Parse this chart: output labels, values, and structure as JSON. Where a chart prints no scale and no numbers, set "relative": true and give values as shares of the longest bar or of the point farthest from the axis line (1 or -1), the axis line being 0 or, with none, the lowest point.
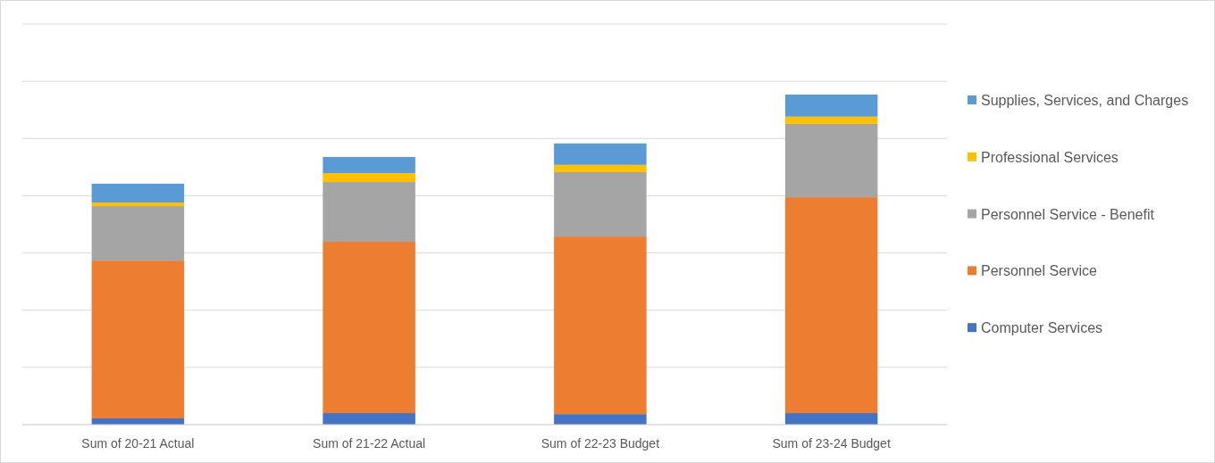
{
  "chart_data": {
    "type": "bar",
    "stacked": true,
    "relative": true,
    "grid": "y",
    "legend": "right",
    "categories": [
      "Sum of 20-21 Actual",
      "Sum of 21-22 Actual",
      "Sum of 22-23 Budget",
      "Sum of 23-24 Budget"
    ],
    "series": [
      {
        "name": "Computer Services",
        "color": "#4472c4",
        "values": [
          0.019,
          0.035,
          0.032,
          0.035
        ]
      },
      {
        "name": "Personnel Service",
        "color": "#ed7d31",
        "values": [
          0.478,
          0.519,
          0.538,
          0.654
        ]
      },
      {
        "name": "Personnel Service - Benefit",
        "color": "#a5a5a5",
        "values": [
          0.165,
          0.181,
          0.195,
          0.222
        ]
      },
      {
        "name": "Professional Services",
        "color": "#ffc000",
        "values": [
          0.011,
          0.027,
          0.022,
          0.022
        ]
      },
      {
        "name": "Supplies, Services, and Charges",
        "color": "#5b9bd5",
        "values": [
          0.057,
          0.049,
          0.065,
          0.067
        ]
      }
    ]
  }
}
